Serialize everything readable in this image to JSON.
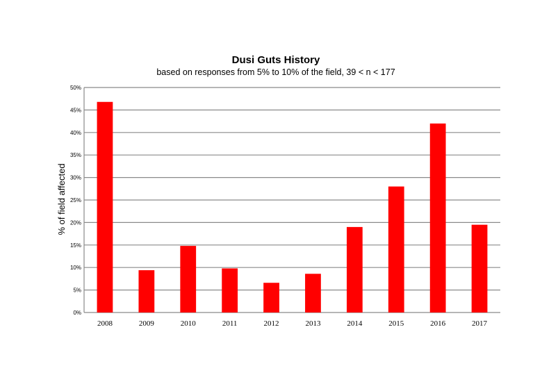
{
  "chart_data": {
    "type": "bar",
    "title": "Dusi Guts History",
    "subtitle": "based on responses from 5% to 10% of the field, 39 < n < 177",
    "xlabel": "",
    "ylabel": "% of field affected",
    "categories": [
      "2008",
      "2009",
      "2010",
      "2011",
      "2012",
      "2013",
      "2014",
      "2015",
      "2016",
      "2017"
    ],
    "values": [
      46.8,
      9.4,
      14.8,
      9.8,
      6.6,
      8.6,
      19.0,
      28.0,
      42.0,
      19.5
    ],
    "ylim": [
      0,
      50
    ],
    "yticks": [
      {
        "value": 0,
        "label": "0%"
      },
      {
        "value": 5,
        "label": "5%"
      },
      {
        "value": 10,
        "label": "10%"
      },
      {
        "value": 15,
        "label": "15%"
      },
      {
        "value": 20,
        "label": "20%"
      },
      {
        "value": 25,
        "label": "25%"
      },
      {
        "value": 30,
        "label": "30%"
      },
      {
        "value": 35,
        "label": "35%"
      },
      {
        "value": 40,
        "label": "40%"
      },
      {
        "value": 45,
        "label": "45%"
      },
      {
        "value": 50,
        "label": "50%"
      }
    ],
    "grid": true,
    "legend": "none",
    "bar_color": "#ff0000"
  }
}
